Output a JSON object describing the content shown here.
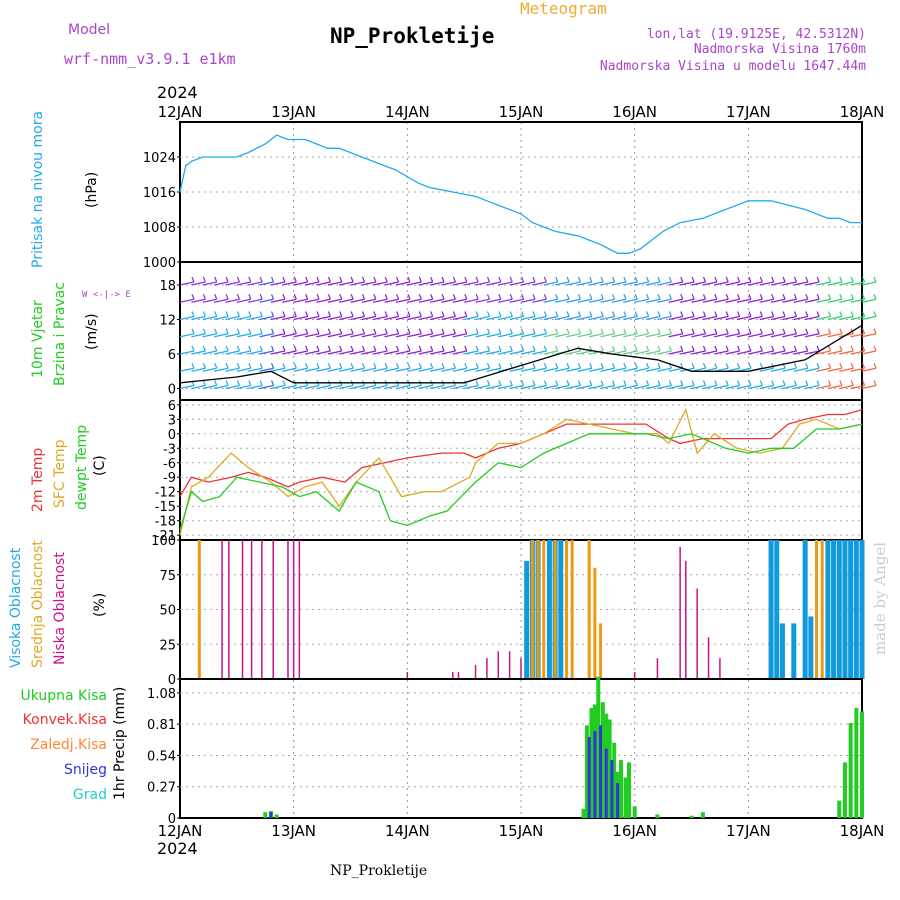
{
  "header": {
    "model_label": "Model",
    "model_name": "wrf-nmm_v3.9.1  e1km",
    "meteogram_label": "Meteogram",
    "station_title": "NP_Prokletije",
    "lonlat": "lon,lat (19.9125E, 42.5312N)",
    "altitude": "Nadmorska Visina 1760m",
    "model_altitude": "Nadmorska Visina u modelu 1647.44m",
    "footer_station": "NP_Prokletije",
    "credit": "made by Angel"
  },
  "time_axis": {
    "year": "2024",
    "ticks": [
      "12JAN",
      "13JAN",
      "14JAN",
      "15JAN",
      "16JAN",
      "17JAN",
      "18JAN"
    ]
  },
  "panels": {
    "pressure": {
      "label": "Pritisak na nivou mora",
      "unit": "(hPa)"
    },
    "wind": {
      "label_a": "10m Vjetar",
      "label_b": "Brzina i Pravac",
      "unit": "(m/s)",
      "compass": "W  <-|-> E"
    },
    "temperature": {
      "label_a": "2m Temp",
      "label_b": "SFC Temp",
      "label_c": "dewpt Temp",
      "unit": "(C)"
    },
    "clouds": {
      "label_a": "Visoka Oblacnost",
      "label_b": "Srednja Oblacnost",
      "label_c": "Niska Oblacnost",
      "unit": "(%)"
    },
    "precip": {
      "label_a": "Ukupna Kisa",
      "label_b": "Konvek.Kisa",
      "label_c": "Zaledj.Kisa",
      "label_d": "Snijeg",
      "label_e": "Grad",
      "unit": "1hr Precip (mm)"
    }
  },
  "colors": {
    "pressure": "#22aaee",
    "temp2m": "#ee3333",
    "sfc": "#ddaa22",
    "dewpt": "#22cc22",
    "high_cloud": "#1199dd",
    "mid_cloud": "#ee9911",
    "low_cloud": "#cc1188",
    "total_rain": "#22cc22",
    "conv_rain": "#ee3333",
    "freezing": "#ff8833",
    "snow": "#3333dd",
    "hail": "#22cccc",
    "purple_text": "#aa44cc",
    "orange_text": "#eeaa33"
  },
  "chart_data": [
    {
      "type": "line",
      "title": "Pritisak na nivou mora",
      "ylabel": "(hPa)",
      "x_unit": "days after 12JAN 00Z",
      "ylim": [
        1000,
        1032
      ],
      "yticks": [
        "1000",
        "1008",
        "1016",
        "1024"
      ],
      "series": [
        {
          "name": "Pritisak na nivou mora",
          "x": [
            0,
            0.05,
            0.1,
            0.2,
            0.35,
            0.5,
            0.6,
            0.75,
            0.85,
            0.95,
            1.0,
            1.1,
            1.2,
            1.3,
            1.4,
            1.5,
            1.7,
            1.9,
            2.1,
            2.2,
            2.4,
            2.6,
            2.7,
            2.9,
            3.0,
            3.1,
            3.2,
            3.3,
            3.5,
            3.6,
            3.7,
            3.85,
            3.95,
            4.05,
            4.25,
            4.4,
            4.6,
            4.8,
            5.0,
            5.2,
            5.35,
            5.5,
            5.7,
            5.8,
            5.9,
            6.0
          ],
          "values": [
            1016,
            1022,
            1023,
            1024,
            1024,
            1024,
            1025,
            1027,
            1029,
            1028,
            1028,
            1028,
            1027,
            1026,
            1026,
            1025,
            1023,
            1021,
            1018,
            1017,
            1016,
            1015,
            1014,
            1012,
            1011,
            1009,
            1008,
            1007,
            1006,
            1005,
            1004,
            1002,
            1002,
            1003,
            1007,
            1009,
            1010,
            1012,
            1014,
            1014,
            1013,
            1012,
            1010,
            1010,
            1009,
            1009
          ]
        }
      ]
    },
    {
      "type": "line",
      "title": "10m Vjetar Brzina i Pravac",
      "ylabel": "(m/s)",
      "x_unit": "days after 12JAN 00Z",
      "ylim": [
        -2,
        22
      ],
      "yticks": [
        "0",
        "6",
        "12",
        "18"
      ],
      "series": [
        {
          "name": "wind speed",
          "x": [
            0,
            0.5,
            0.8,
            1.0,
            1.5,
            2.0,
            2.5,
            3.0,
            3.5,
            3.8,
            4.2,
            4.5,
            5.0,
            5.5,
            6.0
          ],
          "values": [
            1,
            2,
            3,
            1,
            1,
            1,
            1,
            4,
            7,
            6,
            5,
            3,
            3,
            5,
            11
          ]
        }
      ]
    },
    {
      "type": "line",
      "title": "2m Temp / SFC Temp / dewpt Temp",
      "ylabel": "(C)",
      "x_unit": "days after 12JAN 00Z",
      "ylim": [
        -22,
        7
      ],
      "yticks": [
        "-21",
        "-18",
        "-15",
        "-12",
        "-9",
        "-6",
        "-3",
        "0",
        "3",
        "6"
      ],
      "series": [
        {
          "name": "2m Temp",
          "x": [
            0,
            0.1,
            0.25,
            0.45,
            0.6,
            0.75,
            0.95,
            1.05,
            1.25,
            1.45,
            1.6,
            1.8,
            2.0,
            2.3,
            2.5,
            2.6,
            2.8,
            3.0,
            3.2,
            3.4,
            3.6,
            3.9,
            4.1,
            4.3,
            4.4,
            4.6,
            4.8,
            5.0,
            5.2,
            5.35,
            5.5,
            5.7,
            5.85,
            6.0
          ],
          "values": [
            -13,
            -9,
            -10,
            -9,
            -8,
            -9,
            -11,
            -10,
            -9,
            -10,
            -7,
            -6,
            -5,
            -4,
            -4,
            -5,
            -3,
            -2,
            0,
            2,
            2,
            2,
            2,
            -1,
            -2,
            -1,
            -1,
            -1,
            -1,
            2,
            3,
            4,
            4,
            5
          ]
        },
        {
          "name": "SFC Temp",
          "x": [
            0,
            0.1,
            0.25,
            0.45,
            0.6,
            0.8,
            0.95,
            1.1,
            1.25,
            1.4,
            1.55,
            1.75,
            1.95,
            2.15,
            2.3,
            2.55,
            2.6,
            2.8,
            3.0,
            3.2,
            3.4,
            3.6,
            3.8,
            4.0,
            4.2,
            4.3,
            4.45,
            4.55,
            4.7,
            4.9,
            5.1,
            5.3,
            5.45,
            5.6,
            5.8,
            6.0
          ],
          "values": [
            -21,
            -11,
            -9,
            -4,
            -7,
            -10,
            -13,
            -11,
            -10,
            -15,
            -10,
            -5,
            -13,
            -12,
            -12,
            -9,
            -6,
            -2,
            -2,
            0,
            3,
            2,
            1,
            0,
            0,
            -2,
            5,
            -4,
            0,
            -3,
            -4,
            -3,
            2,
            3,
            1,
            2
          ]
        },
        {
          "name": "dewpt Temp",
          "x": [
            0,
            0.1,
            0.2,
            0.35,
            0.5,
            0.7,
            0.9,
            1.05,
            1.2,
            1.4,
            1.55,
            1.75,
            1.85,
            2.0,
            2.2,
            2.35,
            2.6,
            2.8,
            3.0,
            3.2,
            3.4,
            3.6,
            3.9,
            4.1,
            4.3,
            4.5,
            4.8,
            5.0,
            5.2,
            5.4,
            5.6,
            5.8,
            6.0
          ],
          "values": [
            -20,
            -12,
            -14,
            -13,
            -9,
            -10,
            -11,
            -13,
            -12,
            -16,
            -10,
            -12,
            -18,
            -19,
            -17,
            -16,
            -10,
            -6,
            -7,
            -4,
            -2,
            0,
            0,
            0,
            -1,
            0,
            -3,
            -4,
            -3,
            -3,
            1,
            1,
            2
          ]
        }
      ]
    },
    {
      "type": "bar",
      "title": "Visoka / Srednja / Niska Oblacnost",
      "ylabel": "(%)",
      "x_unit": "days after 12JAN 00Z",
      "ylim": [
        0,
        100
      ],
      "yticks": [
        "0",
        "25",
        "50",
        "75",
        "100"
      ],
      "series": [
        {
          "name": "Visoka Oblacnost",
          "x": [
            3.05,
            3.1,
            3.15,
            3.25,
            3.3,
            3.35,
            5.2,
            5.25,
            5.3,
            5.4,
            5.5,
            5.55,
            5.7,
            5.75,
            5.8,
            5.85,
            5.9,
            5.95,
            6.0
          ],
          "values": [
            85,
            100,
            100,
            100,
            100,
            100,
            100,
            100,
            40,
            40,
            100,
            45,
            100,
            100,
            100,
            100,
            100,
            100,
            100
          ]
        },
        {
          "name": "Srednja Oblacnost",
          "x": [
            0.17,
            3.1,
            3.15,
            3.2,
            3.3,
            3.4,
            3.45,
            3.6,
            3.65,
            3.7,
            5.6,
            5.65
          ],
          "values": [
            100,
            100,
            100,
            100,
            100,
            100,
            100,
            100,
            80,
            40,
            100,
            100
          ]
        },
        {
          "name": "Niska Oblacnost",
          "x": [
            0.37,
            0.43,
            0.55,
            0.63,
            0.72,
            0.82,
            0.95,
            1.0,
            1.05,
            2.0,
            2.4,
            2.45,
            2.6,
            2.7,
            2.8,
            2.9,
            3.0,
            4.0,
            4.2,
            4.4,
            4.45,
            4.55,
            4.65,
            4.75
          ],
          "values": [
            100,
            100,
            100,
            100,
            100,
            100,
            100,
            100,
            100,
            5,
            5,
            5,
            10,
            15,
            20,
            20,
            15,
            5,
            15,
            95,
            85,
            65,
            30,
            15
          ]
        }
      ]
    },
    {
      "type": "bar",
      "title": "1hr Precip",
      "ylabel": "1hr Precip (mm)",
      "x_unit": "days after 12JAN 00Z",
      "ylim": [
        0,
        1.2
      ],
      "yticks": [
        "0",
        "0.27",
        "0.54",
        "0.81",
        "1.08"
      ],
      "series": [
        {
          "name": "Ukupna Kisa",
          "x": [
            0.75,
            0.8,
            0.85,
            3.55,
            3.58,
            3.62,
            3.65,
            3.68,
            3.72,
            3.75,
            3.78,
            3.82,
            3.85,
            3.88,
            3.92,
            3.95,
            4.0,
            4.2,
            4.5,
            4.6,
            5.8,
            5.85,
            5.9,
            5.95,
            6.0
          ],
          "values": [
            0.05,
            0.06,
            0.03,
            0.08,
            0.8,
            0.95,
            0.98,
            1.22,
            1.0,
            0.9,
            0.85,
            0.65,
            0.4,
            0.5,
            0.35,
            0.48,
            0.1,
            0.03,
            0.02,
            0.05,
            0.15,
            0.48,
            0.82,
            0.95,
            0.92
          ]
        },
        {
          "name": "Snijeg",
          "x": [
            0.8,
            3.6,
            3.65,
            3.7,
            3.75,
            3.8,
            3.85
          ],
          "values": [
            0.05,
            0.7,
            0.75,
            0.8,
            0.6,
            0.5,
            0.3
          ]
        }
      ]
    }
  ]
}
